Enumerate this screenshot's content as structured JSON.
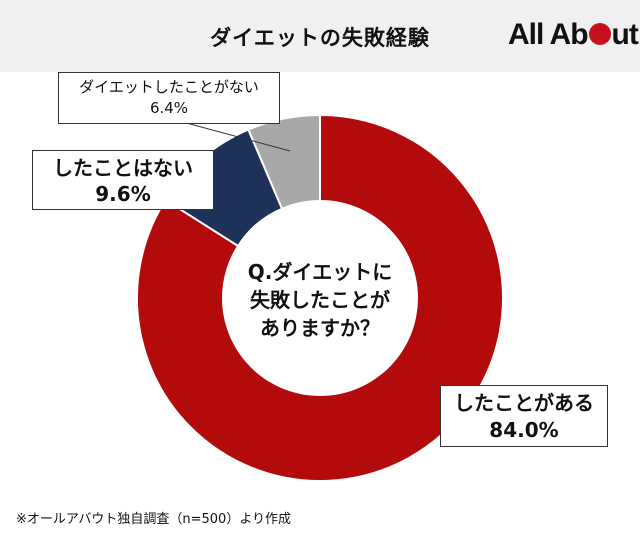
{
  "header": {
    "title": "ダイエットの失敗経験",
    "logo_prefix": "All Ab",
    "logo_suffix": "ut"
  },
  "center_question": {
    "line1": "Q.ダイエットに",
    "line2": "失敗したことが",
    "line3": "ありますか？"
  },
  "labels": {
    "yes": {
      "name": "したことがある",
      "value": "84.0%"
    },
    "no": {
      "name": "したことはない",
      "value": "9.6%"
    },
    "never": {
      "name": "ダイエットしたことがない",
      "value": "6.4%"
    }
  },
  "note": "※オールアバウト独自調査（n=500）より作成",
  "colors": {
    "yes": "#b30b0b",
    "no": "#1e3158",
    "never": "#a8a8a8",
    "logo_dot": "#c8101e"
  },
  "chart_data": {
    "type": "pie",
    "title": "ダイエットの失敗経験",
    "categories": [
      "したことがある",
      "したことはない",
      "ダイエットしたことがない"
    ],
    "values": [
      84.0,
      9.6,
      6.4
    ],
    "unit": "%",
    "donut": true,
    "start": "top",
    "direction": "clockwise"
  }
}
